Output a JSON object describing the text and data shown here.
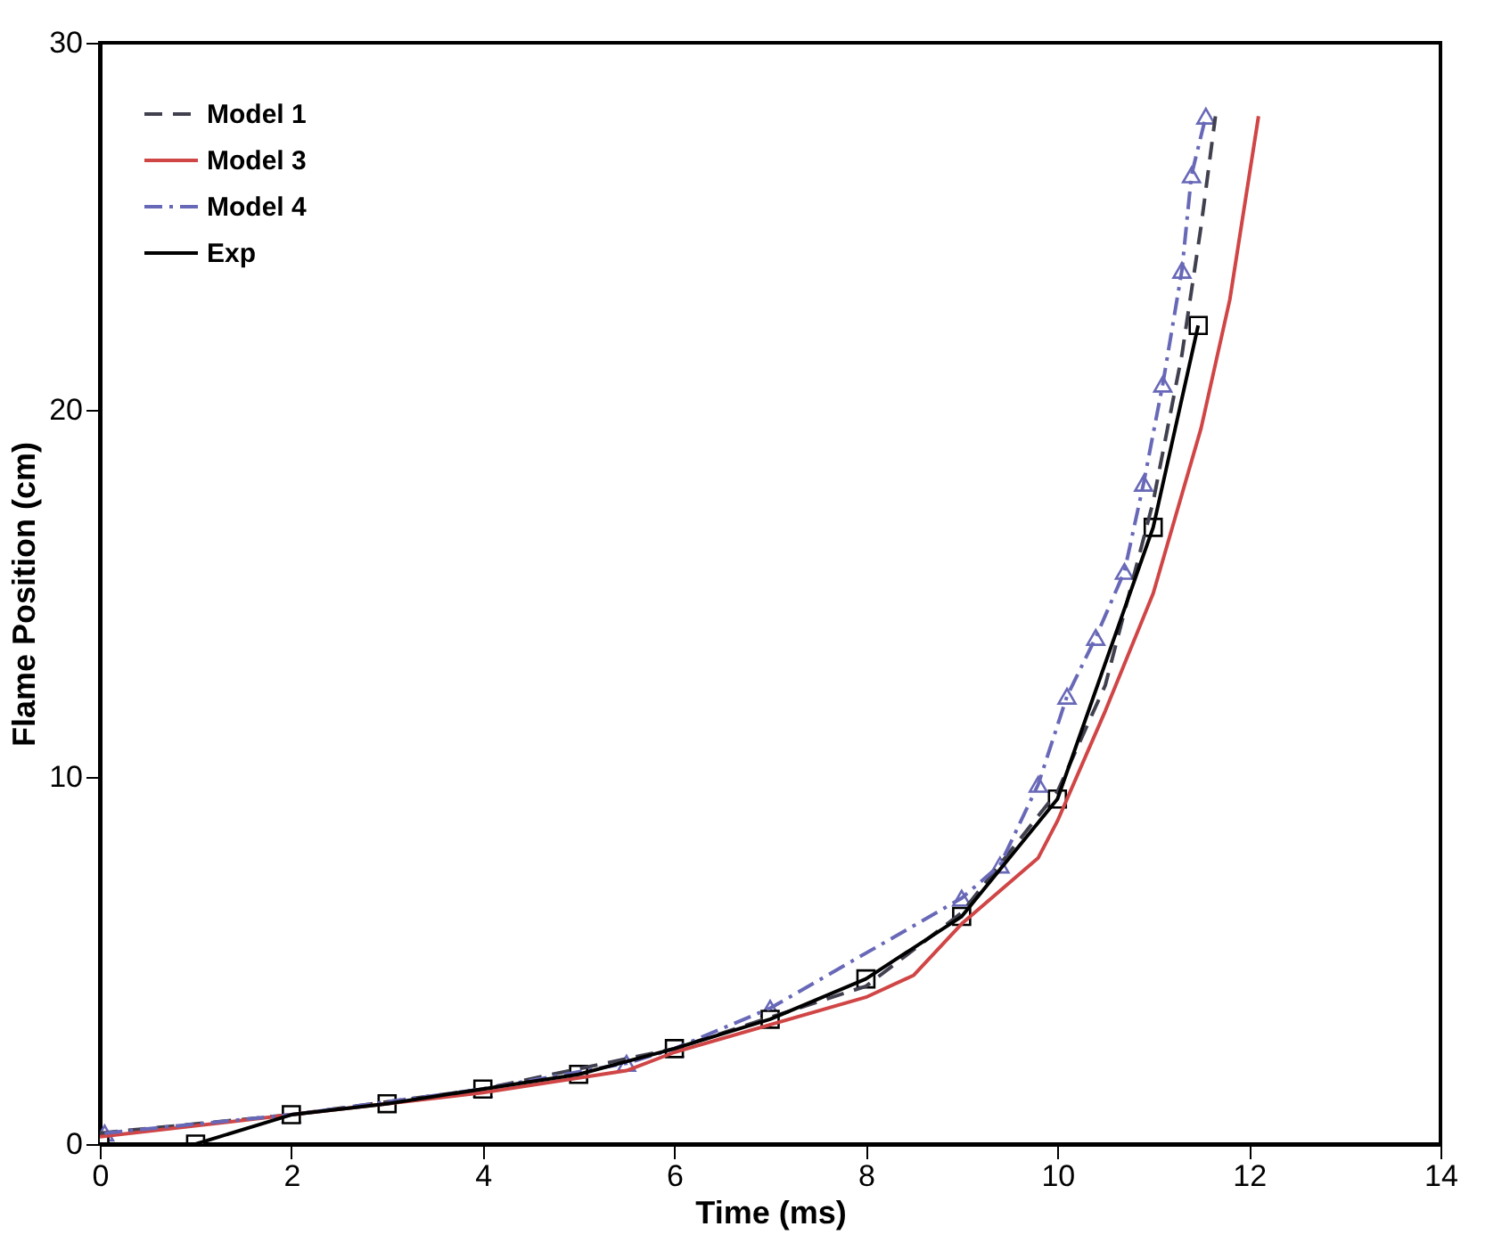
{
  "chart_data": {
    "type": "line",
    "xlabel": "Time (ms)",
    "ylabel": "Flame Position (cm)",
    "xlim": [
      0,
      14
    ],
    "xticks": [
      0,
      2,
      4,
      6,
      8,
      10,
      12,
      14
    ],
    "ylim": [
      0,
      30
    ],
    "yticks": [
      0,
      10,
      20,
      30
    ],
    "grid": false,
    "legend": "top left",
    "series": [
      {
        "name": "Model 1",
        "color": "#40404f",
        "line_style": "dashed",
        "marker": "none",
        "x": [
          0,
          2,
          4,
          6,
          8,
          9,
          10,
          10.5,
          11,
          11.3,
          11.5,
          11.65
        ],
        "values": [
          0.3,
          0.8,
          1.5,
          2.6,
          4.3,
          6.3,
          9.6,
          12.5,
          17.5,
          21.5,
          25,
          28
        ]
      },
      {
        "name": "Model 3",
        "color": "#d04545",
        "line_style": "solid",
        "marker": "none",
        "x": [
          0,
          2,
          4,
          5.5,
          6,
          8,
          8.5,
          9,
          9.8,
          10,
          10.5,
          11,
          11.5,
          11.8,
          12.1
        ],
        "values": [
          0.2,
          0.8,
          1.4,
          2.0,
          2.5,
          4.0,
          4.6,
          6.0,
          7.8,
          8.8,
          11.8,
          15.0,
          19.5,
          23,
          28
        ]
      },
      {
        "name": "Model 4",
        "color": "#6868b8",
        "line_style": "dashdot",
        "marker": "triangle",
        "x": [
          0.05,
          2,
          4,
          5.5,
          6,
          7,
          9,
          9.4,
          9.8,
          10.1,
          10.4,
          10.7,
          10.9,
          11.1,
          11.3,
          11.4,
          11.55
        ],
        "values": [
          0.3,
          0.8,
          1.5,
          2.2,
          2.6,
          3.7,
          6.7,
          7.6,
          9.8,
          12.2,
          13.8,
          15.6,
          18.0,
          20.7,
          23.8,
          26.4,
          28
        ]
      },
      {
        "name": "Exp",
        "color": "#000000",
        "line_style": "solid",
        "marker": "square",
        "x": [
          0,
          1,
          2,
          3,
          4,
          5,
          6,
          7,
          8,
          9,
          10,
          11,
          11.47
        ],
        "values": [
          0,
          0,
          0.8,
          1.1,
          1.5,
          1.9,
          2.6,
          3.4,
          4.5,
          6.2,
          9.4,
          16.8,
          22.3
        ]
      }
    ]
  }
}
